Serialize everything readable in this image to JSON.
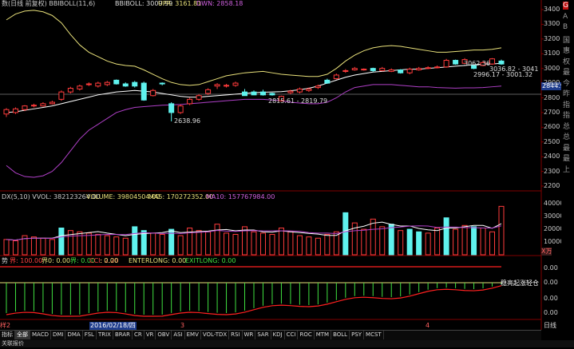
{
  "main_header": {
    "title": "数(日线 前复权) BBIBOLL(11,6)",
    "bbiboll_label": "BBIBOLL: 3009.99",
    "upr_label": "UPR: 3161.81",
    "dwn_label": "DWN: 2858.18"
  },
  "price_axis": [
    "3400",
    "3300",
    "3200",
    "3100",
    "3000",
    "2900",
    "2800",
    "2700",
    "2600",
    "2500",
    "2400",
    "2300",
    "2200"
  ],
  "current_price": "2844.9",
  "annotations": {
    "low_point": "2638.96",
    "range_1": "2815.61 - 2819.79",
    "range_2": "3062.36",
    "range_3": "3036.82 - 3041",
    "range_4": "2996.17 - 3001.32"
  },
  "volume_header": {
    "title": "DX(5,10) VVOL: 382123264.00",
    "volume_label": "VOLUME: 39804504.00",
    "ma5_label": "MA5: 170272352.00",
    "ma10_label": "MA10: 157767984.00"
  },
  "volume_axis": [
    "40000",
    "30000",
    "20000",
    "10000"
  ],
  "volume_unit": "X万",
  "indicator_header": {
    "title": "势",
    "jie_label": "界: 100.00",
    "ling_label": "界0: 0.00",
    "jie0_label": "界: 0.00",
    "cci_label": "CCI: 2.20",
    "x_label": ": 0.00",
    "enterlong_label": "ENTERLONG: 0.00",
    "exitlong_label": "EXITLONG: 0.00"
  },
  "indicator_axis": [
    "0.00",
    "0.00",
    "0.00",
    "0.00"
  ],
  "indicator_note": "稳亮起涨轻仓",
  "date_axis": {
    "left": "样2",
    "date": "2016/02/18/四",
    "m3": "3",
    "m4": "4"
  },
  "tabs": [
    "指标",
    "全部",
    "MACD",
    "DMI",
    "DMA",
    "FSL",
    "TRIX",
    "BRAR",
    "CR",
    "VR",
    "OBV",
    "ASI",
    "EMV",
    "VOL-TDX",
    "RSI",
    "WR",
    "SAR",
    "KDJ",
    "CCI",
    "ROC",
    "MTM",
    "BOLL",
    "PSY",
    "MCST"
  ],
  "tab_right": "日线",
  "status_left": "关联报价",
  "right_panel_chars": [
    "G",
    "A",
    "B",
    "国",
    "惠",
    "权",
    "最",
    "今",
    "昨",
    "指",
    "指",
    "总",
    "总",
    "最",
    "最",
    "上"
  ],
  "colors": {
    "up": "#ff3b3b",
    "down": "#5ff2ee",
    "upr_line": "#e8e07a",
    "dwn_line": "#b040c8",
    "bbi_line": "#ffffff",
    "ma5": "#ffffff",
    "ma10": "#e8e07a",
    "cci_line": "#ff2020",
    "hist": "#40e040"
  },
  "chart_data": {
    "type": "candlestick",
    "candles": [
      [
        2690,
        2720,
        2670,
        2730
      ],
      [
        2700,
        2725,
        2690,
        2735
      ],
      [
        2720,
        2745,
        2710,
        2750
      ],
      [
        2745,
        2750,
        2735,
        2760
      ],
      [
        2745,
        2760,
        2740,
        2770
      ],
      [
        2760,
        2770,
        2755,
        2780
      ],
      [
        2790,
        2840,
        2780,
        2850
      ],
      [
        2840,
        2865,
        2830,
        2875
      ],
      [
        2860,
        2880,
        2850,
        2890
      ],
      [
        2890,
        2895,
        2880,
        2905
      ],
      [
        2880,
        2900,
        2870,
        2910
      ],
      [
        2890,
        2905,
        2880,
        2915
      ],
      [
        2920,
        2895,
        2890,
        2925
      ],
      [
        2895,
        2880,
        2875,
        2905
      ],
      [
        2905,
        2880,
        2870,
        2915
      ],
      [
        2900,
        2785,
        2780,
        2910
      ],
      [
        2815,
        2850,
        2810,
        2860
      ],
      [
        2900,
        2895,
        2885,
        2905
      ],
      [
        2760,
        2700,
        2640,
        2770
      ],
      [
        2700,
        2745,
        2690,
        2755
      ],
      [
        2760,
        2790,
        2750,
        2800
      ],
      [
        2790,
        2815,
        2780,
        2825
      ],
      [
        2830,
        2855,
        2820,
        2865
      ],
      [
        2880,
        2890,
        2860,
        2900
      ],
      [
        2880,
        2885,
        2870,
        2895
      ],
      [
        2885,
        2900,
        2875,
        2910
      ],
      [
        2840,
        2815,
        2815,
        2860
      ],
      [
        2840,
        2820,
        2818,
        2850
      ],
      [
        2840,
        2820,
        2815,
        2855
      ],
      [
        2830,
        2820,
        2815,
        2835
      ],
      [
        2780,
        2810,
        2775,
        2815
      ],
      [
        2835,
        2845,
        2825,
        2855
      ],
      [
        2840,
        2860,
        2830,
        2870
      ],
      [
        2850,
        2860,
        2840,
        2870
      ],
      [
        2870,
        2880,
        2860,
        2890
      ],
      [
        2920,
        2900,
        2895,
        2930
      ],
      [
        2930,
        2955,
        2925,
        2965
      ],
      [
        2980,
        2985,
        2970,
        2995
      ],
      [
        2990,
        3000,
        2985,
        3010
      ],
      [
        2990,
        2995,
        2985,
        3000
      ],
      [
        3000,
        2985,
        2975,
        3005
      ],
      [
        2985,
        3000,
        2980,
        3010
      ],
      [
        2980,
        2990,
        2975,
        3000
      ],
      [
        2990,
        2970,
        2965,
        2995
      ],
      [
        2970,
        2995,
        2960,
        3005
      ],
      [
        2990,
        3000,
        2985,
        3010
      ],
      [
        3000,
        3005,
        2995,
        3015
      ],
      [
        3005,
        3010,
        3000,
        3020
      ],
      [
        3010,
        3055,
        3005,
        3065
      ],
      [
        3055,
        3030,
        3025,
        3060
      ],
      [
        3035,
        3060,
        3030,
        3070
      ],
      [
        3020,
        3000,
        2995,
        3025
      ],
      [
        3020,
        3040,
        3015,
        3050
      ],
      [
        3030,
        3065,
        3025,
        3070
      ],
      [
        3050,
        3030,
        3025,
        3060
      ]
    ],
    "volumes": [
      12000,
      11000,
      15000,
      14000,
      13000,
      12000,
      21000,
      19000,
      18000,
      17000,
      16000,
      15000,
      14000,
      13000,
      22000,
      19000,
      17000,
      16000,
      20000,
      15000,
      21000,
      19000,
      18000,
      24000,
      17000,
      16000,
      22000,
      18000,
      17000,
      16000,
      21000,
      18000,
      15000,
      14000,
      13000,
      16000,
      18000,
      33000,
      25000,
      20000,
      28000,
      22000,
      24000,
      19000,
      20000,
      18000,
      17000,
      21000,
      29000,
      20000,
      23000,
      22000,
      21000,
      18000,
      38000
    ],
    "volume_down_index": [
      6,
      14,
      15,
      18,
      37,
      42,
      44,
      45,
      48,
      51
    ],
    "ylim": [
      2200,
      3400
    ]
  }
}
